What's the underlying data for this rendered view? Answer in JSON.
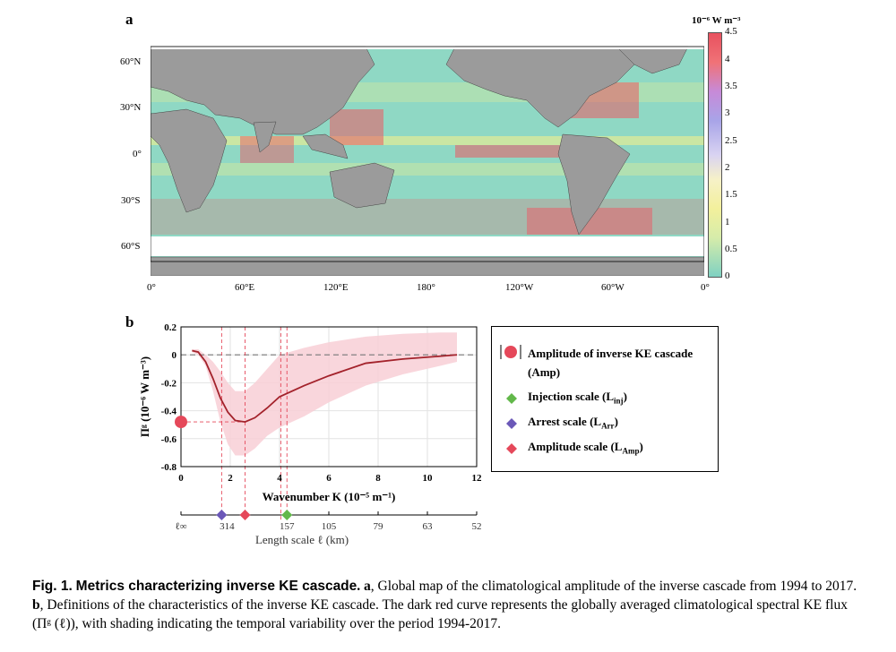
{
  "panel_a": {
    "label": "a",
    "colorbar": {
      "unit_label": "10⁻⁶ W m⁻³",
      "ticks": [
        "4.5",
        "4",
        "3.5",
        "3",
        "2.5",
        "2",
        "1.5",
        "1",
        "0.5",
        "0"
      ],
      "colors": [
        "#e8515f",
        "#f07277",
        "#c78ad8",
        "#a8a4e8",
        "#d9d3f2",
        "#f6f1c8",
        "#f3f09c",
        "#d6ecaa",
        "#a8dfc2",
        "#7fd1c2"
      ]
    },
    "lat_labels": [
      "60°N",
      "30°N",
      "0°",
      "30°S",
      "60°S"
    ],
    "lon_labels": [
      "0°",
      "60°E",
      "120°E",
      "180°",
      "120°W",
      "60°W",
      "0°"
    ],
    "colors": {
      "land": "#9b9b9b",
      "ocean_base": "#8fd8c4",
      "high": "#ec5a63",
      "mid": "#f2f08e"
    }
  },
  "panel_b": {
    "label": "b",
    "y_axis_label": "Πᵍ (10⁻⁶ W m⁻³)",
    "x_axis_label": "Wavenumber K (10⁻⁵ m⁻¹)",
    "length_axis_label": "Length scale ℓ (km)",
    "length_ticks": [
      "ℓ∞",
      "314",
      "157",
      "105",
      "79",
      "63",
      "52"
    ],
    "legend": [
      {
        "marker": "circle",
        "text": "Amplitude of inverse KE cascade (Amp)",
        "color": "#e5485a"
      },
      {
        "marker": "diamond",
        "text": "Injection scale (L",
        "sub": "inj",
        "suffix": ")",
        "color": "#62b84a"
      },
      {
        "marker": "diamond",
        "text": "Arrest scale (L",
        "sub": "Arr",
        "suffix": ")",
        "color": "#6b58b8"
      },
      {
        "marker": "diamond",
        "text": "Amplitude scale (L",
        "sub": "Amp",
        "suffix": ")",
        "color": "#e5485a"
      }
    ]
  },
  "chart_data": {
    "type": "line",
    "xlabel": "Wavenumber K (10⁻⁵ m⁻¹)",
    "ylabel": "Πᵍ (10⁻⁶ W m⁻³)",
    "xlim": [
      0,
      12
    ],
    "ylim": [
      -0.8,
      0.2
    ],
    "xticks": [
      0,
      2,
      4,
      6,
      8,
      10,
      12
    ],
    "yticks": [
      0.2,
      0,
      -0.2,
      -0.4,
      -0.6,
      -0.8
    ],
    "grid": true,
    "series": [
      {
        "x": [
          0.45,
          0.7,
          1.0,
          1.3,
          1.6,
          1.9,
          2.2,
          2.6,
          3.0,
          3.5,
          4.0,
          5.0,
          6.0,
          7.5,
          9.0,
          10.5,
          11.2
        ],
        "values": [
          0.03,
          0.02,
          -0.05,
          -0.17,
          -0.31,
          -0.41,
          -0.47,
          -0.48,
          -0.45,
          -0.38,
          -0.3,
          -0.22,
          -0.15,
          -0.06,
          -0.03,
          -0.01,
          0.0
        ],
        "upper": [
          0.04,
          0.04,
          0.0,
          -0.05,
          -0.12,
          -0.2,
          -0.26,
          -0.26,
          -0.2,
          -0.1,
          0.0,
          0.05,
          0.09,
          0.13,
          0.15,
          0.16,
          0.16
        ],
        "lower": [
          0.02,
          0.0,
          -0.08,
          -0.26,
          -0.48,
          -0.64,
          -0.72,
          -0.72,
          -0.67,
          -0.58,
          -0.52,
          -0.44,
          -0.34,
          -0.22,
          -0.14,
          -0.08,
          -0.05
        ]
      }
    ],
    "reference_lines": {
      "vertical_x": [
        1.65,
        2.6,
        4.05,
        4.3
      ],
      "horizontal_y": -0.48
    },
    "markers": {
      "amplitude_y": -0.48,
      "arrest_x": 1.65,
      "amplitude_scale_x": 2.6,
      "injection_x": 4.3
    }
  },
  "caption": {
    "fig_label": "Fig. 1.",
    "title": "Metrics characterizing inverse KE cascade",
    "part_a_label": "a",
    "part_a_text": ", Global map of the climatological amplitude of the inverse cascade from 1994 to 2017. ",
    "part_b_label": "b",
    "part_b_text": ", Definitions of the characteristics of the inverse KE cascade. The dark red curve represents the globally averaged climatological spectral KE flux (Πᵍ (ℓ)), with shading indicating the temporal variability over the period 1994-2017."
  }
}
